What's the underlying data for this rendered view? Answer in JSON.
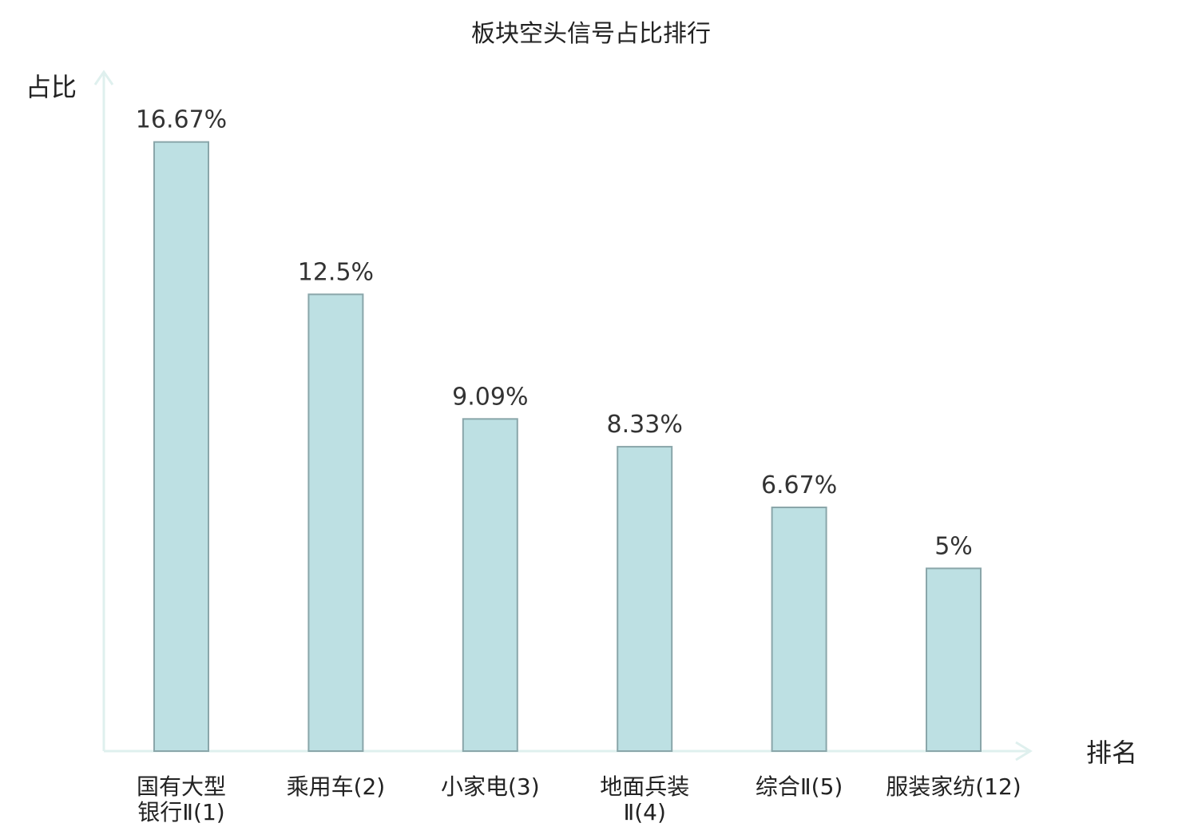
{
  "chart_data": {
    "type": "bar",
    "title": "板块空头信号占比排行",
    "ylabel": "占比",
    "xlabel": "排名",
    "categories": [
      [
        "国有大型",
        "银行Ⅱ(1)"
      ],
      [
        "乘用车(2)"
      ],
      [
        "小家电(3)"
      ],
      [
        "地面兵装",
        "Ⅱ(4)"
      ],
      [
        "综合Ⅱ(5)"
      ],
      [
        "服装家纺(12)"
      ]
    ],
    "values": [
      16.67,
      12.5,
      9.09,
      8.33,
      6.67,
      5
    ],
    "value_labels": [
      "16.67%",
      "12.5%",
      "9.09%",
      "8.33%",
      "6.67%",
      "5%"
    ],
    "highlight_index": 5,
    "ylim": [
      0,
      18.5
    ],
    "grid": false,
    "colors": {
      "bar_fill": "#bde0e3",
      "bar_stroke": "#8aa6aa",
      "axis": "#dff0ee",
      "text": "#222222",
      "highlight_text": "#e02020"
    }
  }
}
